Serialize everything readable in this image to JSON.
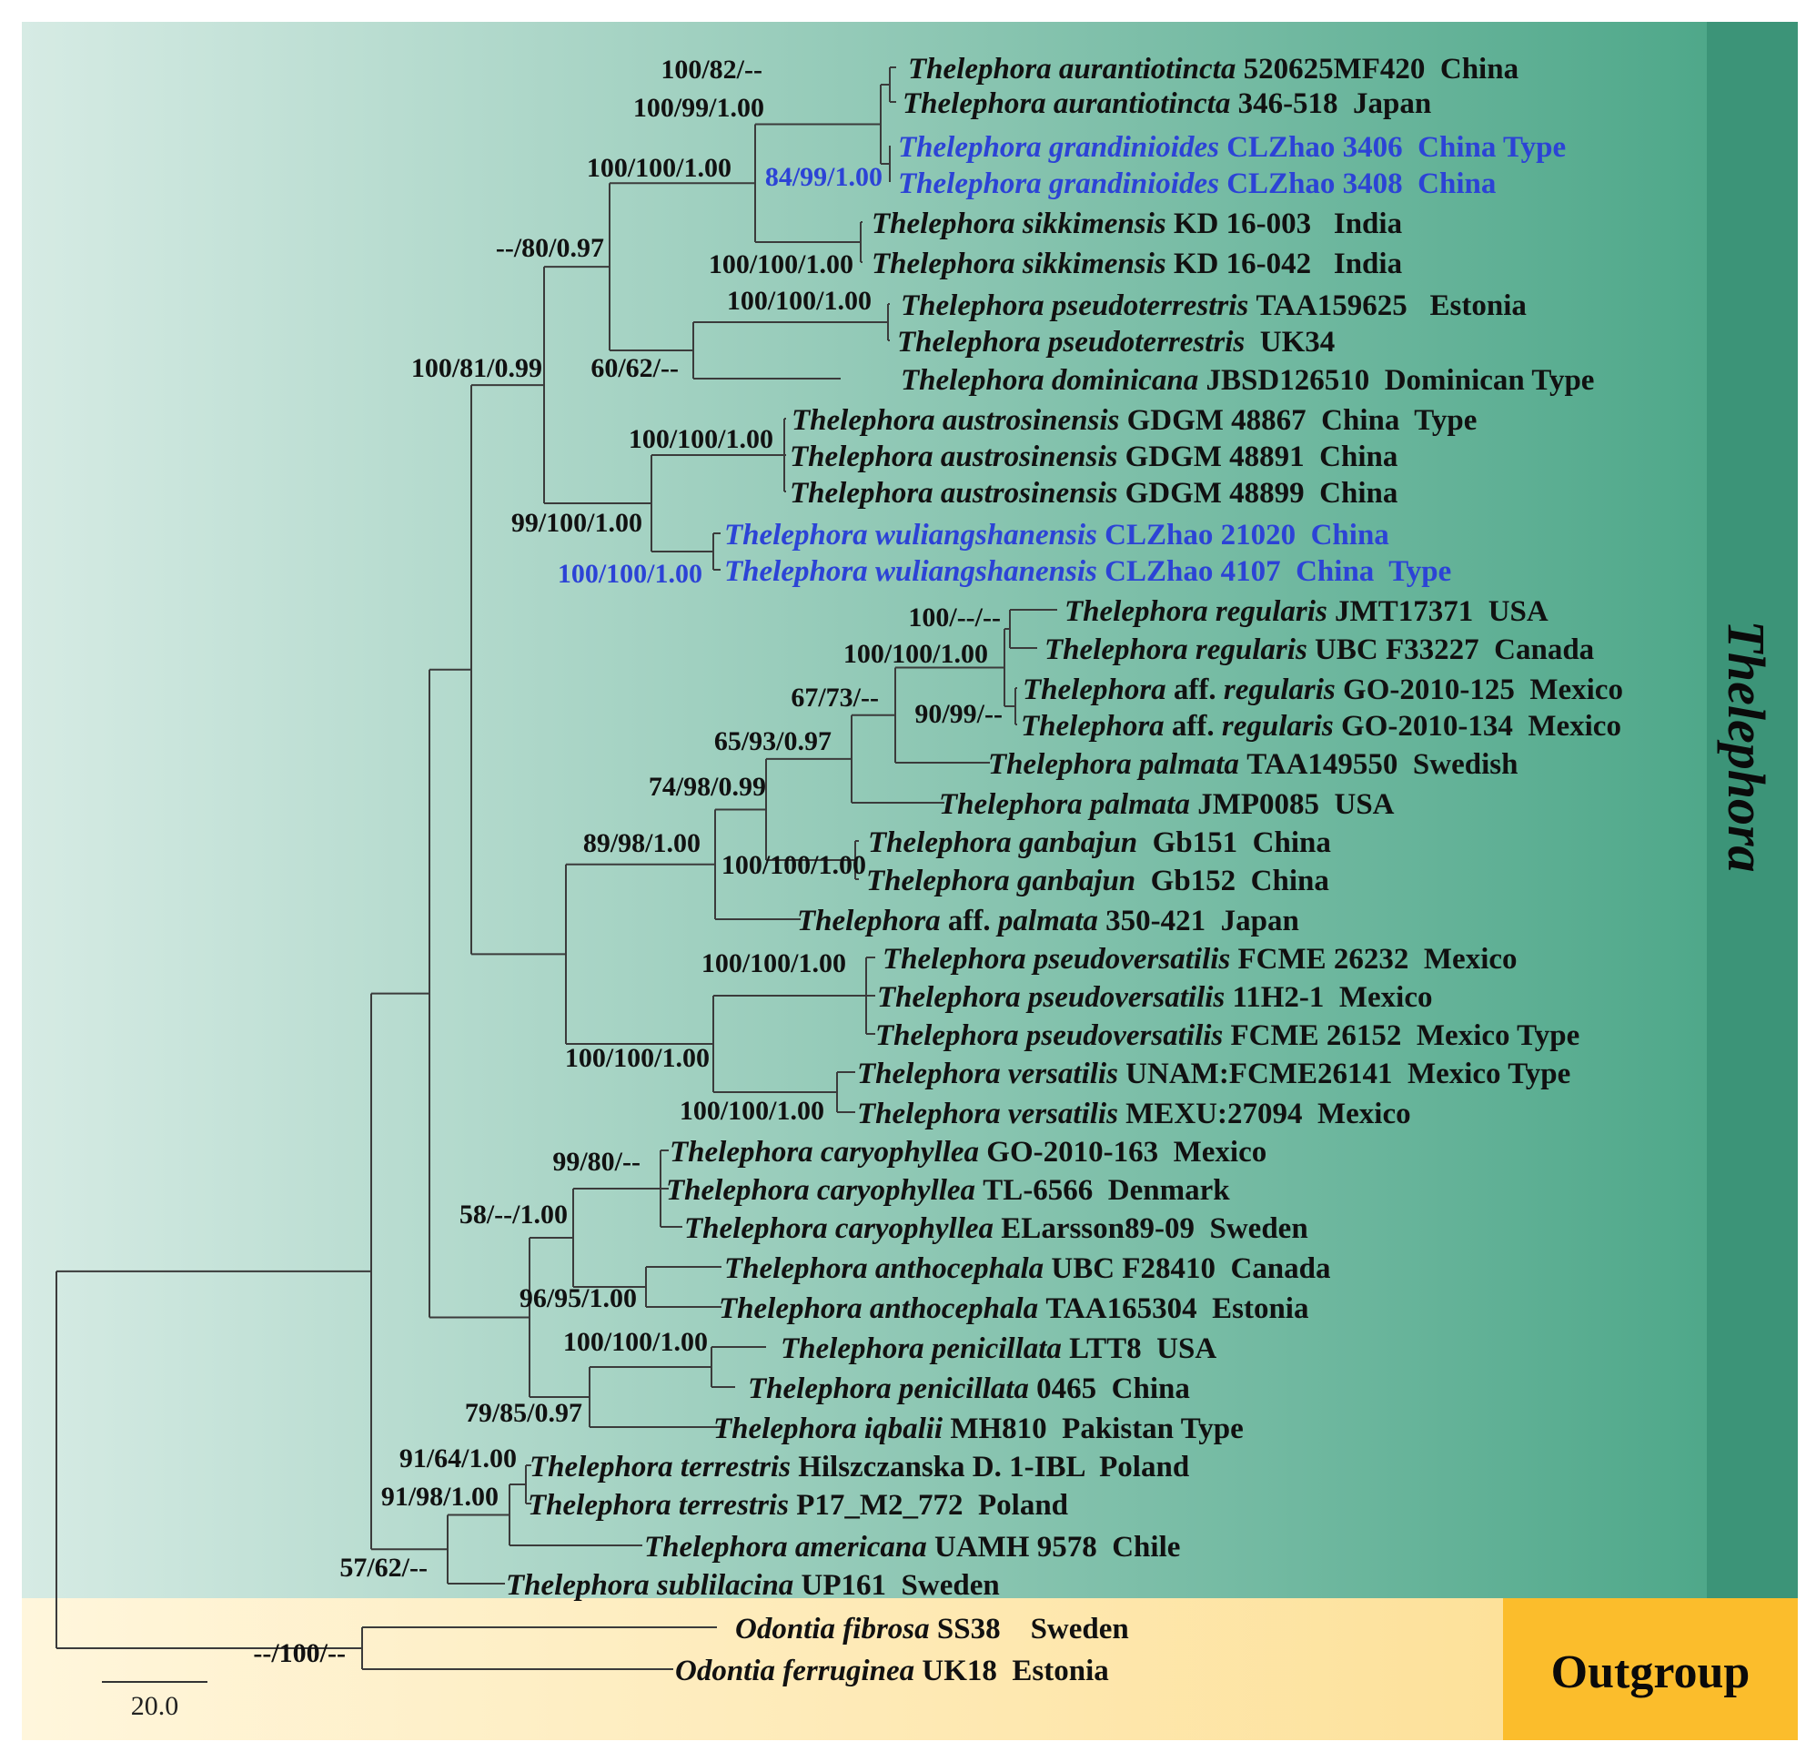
{
  "figure": {
    "colors": {
      "ingroup_bg_start": "#d6ebe4",
      "ingroup_bg_end": "#4fa88a",
      "ingroup_band": "#3c9478",
      "outgroup_bg_start": "#fff6dc",
      "outgroup_bg_end": "#fde19a",
      "outgroup_band": "#fbbd2c",
      "new_species": "#2c43d6"
    },
    "clades": {
      "ingroup": "Thelephora",
      "outgroup": "Outgroup"
    },
    "scale_bar": {
      "label": "20.0"
    }
  },
  "tree": {
    "taxa": [
      {
        "id": "t1",
        "genus": "Thelephora",
        "species": "aurantiotincta",
        "rest": "520625MF420  China",
        "new": false
      },
      {
        "id": "t2",
        "genus": "Thelephora",
        "species": "aurantiotincta",
        "rest": "346-518  Japan",
        "new": false
      },
      {
        "id": "t3",
        "genus": "Thelephora",
        "species": "grandinioides",
        "rest": "CLZhao 3406  China Type",
        "new": true
      },
      {
        "id": "t4",
        "genus": "Thelephora",
        "species": "grandinioides",
        "rest": "CLZhao 3408  China",
        "new": true
      },
      {
        "id": "t5",
        "genus": "Thelephora",
        "species": "sikkimensis",
        "rest": "KD 16-003   India",
        "new": false
      },
      {
        "id": "t6",
        "genus": "Thelephora",
        "species": "sikkimensis",
        "rest": "KD 16-042   India",
        "new": false
      },
      {
        "id": "t7",
        "genus": "Thelephora",
        "species": "pseudoterrestris",
        "rest": "TAA159625   Estonia",
        "new": false
      },
      {
        "id": "t8",
        "genus": "Thelephora",
        "species": "pseudoterrestris",
        "rest": " UK34",
        "new": false
      },
      {
        "id": "t9",
        "genus": "Thelephora",
        "species": "dominicana",
        "rest": "JBSD126510  Dominican Type",
        "new": false
      },
      {
        "id": "t10",
        "genus": "Thelephora",
        "species": "austrosinensis",
        "rest": "GDGM 48867  China  Type",
        "new": false
      },
      {
        "id": "t11",
        "genus": "Thelephora",
        "species": "austrosinensis",
        "rest": "GDGM 48891  China",
        "new": false
      },
      {
        "id": "t12",
        "genus": "Thelephora",
        "species": "austrosinensis",
        "rest": "GDGM 48899  China",
        "new": false
      },
      {
        "id": "t13",
        "genus": "Thelephora",
        "species": "wuliangshanensis",
        "rest": "CLZhao 21020  China",
        "new": true
      },
      {
        "id": "t14",
        "genus": "Thelephora",
        "species": "wuliangshanensis",
        "rest": "CLZhao 4107  China  Type",
        "new": true
      },
      {
        "id": "t15",
        "genus": "Thelephora",
        "species": "regularis",
        "rest": "JMT17371  USA",
        "new": false
      },
      {
        "id": "t16",
        "genus": "Thelephora",
        "species": "regularis",
        "rest": "UBC F33227  Canada",
        "new": false
      },
      {
        "id": "t17",
        "genus": "Thelephora",
        "aff": "aff.",
        "species": "regularis",
        "rest": "GO-2010-125  Mexico",
        "new": false
      },
      {
        "id": "t18",
        "genus": "Thelephora",
        "aff": "aff.",
        "species": "regularis",
        "rest": "GO-2010-134  Mexico",
        "new": false
      },
      {
        "id": "t19",
        "genus": "Thelephora",
        "species": "palmata",
        "rest": "TAA149550  Swedish",
        "new": false
      },
      {
        "id": "t20",
        "genus": "Thelephora",
        "species": "palmata",
        "rest": "JMP0085  USA",
        "new": false
      },
      {
        "id": "t21",
        "genus": "Thelephora",
        "species": "ganbajun",
        "rest": " Gb151  China",
        "new": false
      },
      {
        "id": "t22",
        "genus": "Thelephora",
        "species": "ganbajun",
        "rest": " Gb152  China",
        "new": false
      },
      {
        "id": "t23",
        "genus": "Thelephora",
        "aff": "aff.",
        "species": "palmata",
        "rest": "350-421  Japan",
        "new": false
      },
      {
        "id": "t24",
        "genus": "Thelephora",
        "species": "pseudoversatilis",
        "rest": "FCME 26232  Mexico",
        "new": false
      },
      {
        "id": "t25",
        "genus": "Thelephora",
        "species": "pseudoversatilis",
        "rest": "11H2-1  Mexico",
        "new": false
      },
      {
        "id": "t26",
        "genus": "Thelephora",
        "species": "pseudoversatilis",
        "rest": "FCME 26152  Mexico Type",
        "new": false
      },
      {
        "id": "t27",
        "genus": "Thelephora",
        "species": "versatilis",
        "rest": "UNAM:FCME26141  Mexico Type",
        "new": false
      },
      {
        "id": "t28",
        "genus": "Thelephora",
        "species": "versatilis",
        "rest": "MEXU:27094  Mexico",
        "new": false
      },
      {
        "id": "t29",
        "genus": "Thelephora",
        "species": "caryophyllea",
        "rest": "GO-2010-163  Mexico",
        "new": false
      },
      {
        "id": "t30",
        "genus": "Thelephora",
        "species": "caryophyllea",
        "rest": "TL-6566  Denmark",
        "new": false
      },
      {
        "id": "t31",
        "genus": "Thelephora",
        "species": "caryophyllea",
        "rest": "ELarsson89-09  Sweden",
        "new": false
      },
      {
        "id": "t32",
        "genus": "Thelephora",
        "species": "anthocephala",
        "rest": "UBC F28410  Canada",
        "new": false
      },
      {
        "id": "t33",
        "genus": "Thelephora",
        "species": "anthocephala",
        "rest": "TAA165304  Estonia",
        "new": false
      },
      {
        "id": "t34",
        "genus": "Thelephora",
        "species": "penicillata",
        "rest": "LTT8  USA",
        "new": false
      },
      {
        "id": "t35",
        "genus": "Thelephora",
        "species": "penicillata",
        "rest": "0465  China",
        "new": false
      },
      {
        "id": "t36",
        "genus": "Thelephora",
        "species": "iqbalii",
        "rest": "MH810  Pakistan Type",
        "new": false
      },
      {
        "id": "t37",
        "genus": "Thelephora",
        "species": "terrestris",
        "rest": "Hilszczanska D. 1-IBL  Poland",
        "new": false
      },
      {
        "id": "t38",
        "genus": "Thelephora",
        "species": "terrestris",
        "rest": "P17_M2_772  Poland",
        "new": false
      },
      {
        "id": "t39",
        "genus": "Thelephora",
        "species": "americana",
        "rest": "UAMH 9578  Chile",
        "new": false
      },
      {
        "id": "t40",
        "genus": "Thelephora",
        "species": "sublilacina",
        "rest": "UP161  Sweden",
        "new": false
      },
      {
        "id": "t41",
        "genus": "Odontia",
        "species": "fibrosa",
        "rest": "SS38    Sweden",
        "new": false
      },
      {
        "id": "t42",
        "genus": "Odontia",
        "species": "ferruginea",
        "rest": "UK18  Estonia",
        "new": false
      }
    ],
    "support_values": [
      {
        "id": "n1",
        "value": "100/82/--",
        "new": false
      },
      {
        "id": "n2",
        "value": "100/99/1.00",
        "new": false
      },
      {
        "id": "n3",
        "value": "100/100/1.00",
        "new": false
      },
      {
        "id": "n4",
        "value": "84/99/1.00",
        "new": true
      },
      {
        "id": "n5",
        "value": "--/80/0.97",
        "new": false
      },
      {
        "id": "n6",
        "value": "100/100/1.00",
        "new": false
      },
      {
        "id": "n7",
        "value": "100/100/1.00",
        "new": false
      },
      {
        "id": "n8",
        "value": "100/81/0.99",
        "new": false
      },
      {
        "id": "n9",
        "value": "60/62/--",
        "new": false
      },
      {
        "id": "n10",
        "value": "100/100/1.00",
        "new": false
      },
      {
        "id": "n11",
        "value": "99/100/1.00",
        "new": false
      },
      {
        "id": "n12",
        "value": "100/100/1.00",
        "new": true
      },
      {
        "id": "n13",
        "value": "100/--/--",
        "new": false
      },
      {
        "id": "n14",
        "value": "100/100/1.00",
        "new": false
      },
      {
        "id": "n15",
        "value": "67/73/--",
        "new": false
      },
      {
        "id": "n16",
        "value": "90/99/--",
        "new": false
      },
      {
        "id": "n17",
        "value": "65/93/0.97",
        "new": false
      },
      {
        "id": "n18",
        "value": "74/98/0.99",
        "new": false
      },
      {
        "id": "n19",
        "value": "89/98/1.00",
        "new": false
      },
      {
        "id": "n20",
        "value": "100/100/1.00",
        "new": false
      },
      {
        "id": "n21",
        "value": "100/100/1.00",
        "new": false
      },
      {
        "id": "n22",
        "value": "100/100/1.00",
        "new": false
      },
      {
        "id": "n23",
        "value": "100/100/1.00",
        "new": false
      },
      {
        "id": "n24",
        "value": "99/80/--",
        "new": false
      },
      {
        "id": "n25",
        "value": "58/--/1.00",
        "new": false
      },
      {
        "id": "n26",
        "value": "96/95/1.00",
        "new": false
      },
      {
        "id": "n27",
        "value": "100/100/1.00",
        "new": false
      },
      {
        "id": "n28",
        "value": "79/85/0.97",
        "new": false
      },
      {
        "id": "n29",
        "value": "91/64/1.00",
        "new": false
      },
      {
        "id": "n30",
        "value": "91/98/1.00",
        "new": false
      },
      {
        "id": "n31",
        "value": "57/62/--",
        "new": false
      },
      {
        "id": "n32",
        "value": "--/100/--",
        "new": false
      }
    ]
  }
}
